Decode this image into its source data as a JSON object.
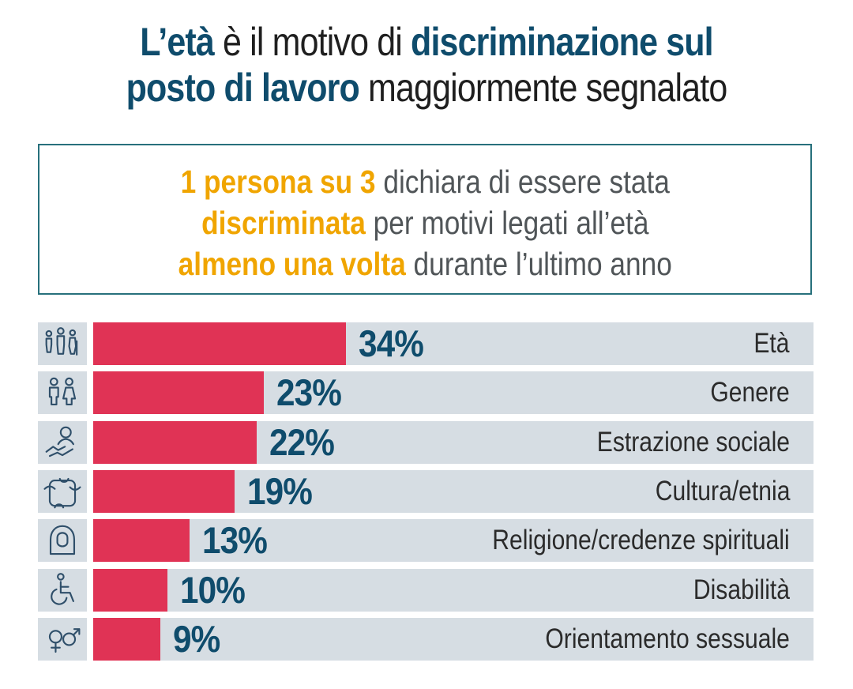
{
  "title": {
    "part1": "L’età",
    "part2": " è il motivo di ",
    "part3": "discriminazione sul",
    "part4": "posto di lavoro",
    "part5": " maggiormente segnalato"
  },
  "callout": {
    "l1_em": "1 persona su 3",
    "l1_rest": " dichiara di essere stata",
    "l2_em": "discriminata",
    "l2_rest": " per motivi legati all’età",
    "l3_em": "almeno una volta",
    "l3_rest": " durante l’ultimo anno"
  },
  "colors": {
    "title_highlight": "#0f4c6c",
    "callout_highlight": "#f0a500",
    "bar": "#e03355",
    "row_background": "#d6dde3",
    "callout_border": "#27707c"
  },
  "chart_data": {
    "type": "bar",
    "orientation": "horizontal",
    "categories": [
      "Età",
      "Genere",
      "Estrazione sociale",
      "Cultura/etnia",
      "Religione/credenze spirituali",
      "Disabilità",
      "Orientamento sessuale"
    ],
    "values": [
      34,
      23,
      22,
      19,
      13,
      10,
      9
    ],
    "value_labels": [
      "34%",
      "23%",
      "22%",
      "19%",
      "13%",
      "10%",
      "9%"
    ],
    "icons": [
      "age-group-icon",
      "gender-icon",
      "social-class-icon",
      "culture-hands-icon",
      "religion-icon",
      "wheelchair-icon",
      "gender-symbols-icon"
    ],
    "xlim": [
      0,
      100
    ],
    "grid": false,
    "legend": "none"
  }
}
